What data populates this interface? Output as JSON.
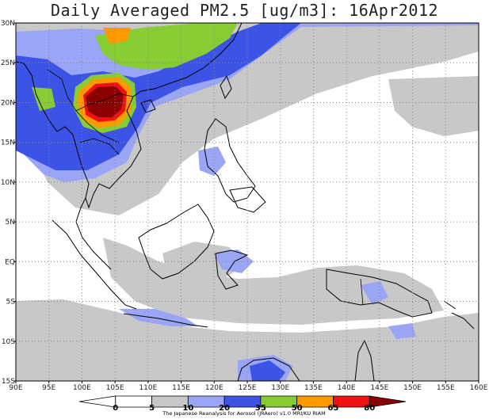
{
  "title": "Daily Averaged PM2.5 [ug/m3]: 16Apr2012",
  "map": {
    "lon_range": [
      90,
      160
    ],
    "lat_range": [
      -15,
      30
    ],
    "lat_labels": [
      "30N",
      "25N",
      "20N",
      "15N",
      "10N",
      "5N",
      "EQ",
      "5S",
      "10S",
      "15S"
    ],
    "lon_labels": [
      "90E",
      "95E",
      "100E",
      "105E",
      "110E",
      "115E",
      "120E",
      "125E",
      "130E",
      "135E",
      "140E",
      "145E",
      "150E",
      "155E",
      "160E"
    ],
    "gridlines": "dotted"
  },
  "colorbar": {
    "levels": [
      "0",
      "5",
      "10",
      "20",
      "35",
      "50",
      "65",
      "80"
    ],
    "colors": [
      "#ffffff",
      "#ffffff",
      "#c8c8c8",
      "#9aa5f5",
      "#3c54e6",
      "#88cc33",
      "#ff9900",
      "#ee1111",
      "#8b0000"
    ],
    "caption": "The Japanese Reanalysis for Aerosol (JRAero) v1.0 MRI/KU RIAM"
  }
}
